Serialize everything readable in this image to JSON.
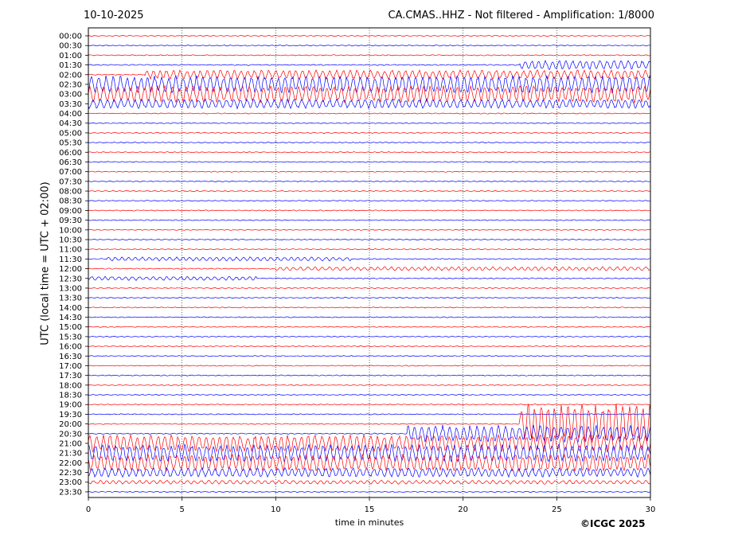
{
  "header": {
    "date": "10-10-2025",
    "title": "CA.CMAS..HHZ - Not filtered - Amplification: 1/8000"
  },
  "footer": {
    "copyright": "©ICGC 2025"
  },
  "chart_data": {
    "type": "line",
    "title": "CA.CMAS..HHZ - Not filtered - Amplification: 1/8000",
    "xlabel": "time in minutes",
    "ylabel": "UTC (local time = UTC + 02:00)",
    "xlim": [
      0,
      30
    ],
    "x_ticks": [
      0,
      5,
      10,
      15,
      20,
      25,
      30
    ],
    "grid": "vertical dotted lines at x ticks",
    "trace_colors": [
      "#ff0000",
      "#0000ff"
    ],
    "rows": [
      "00:00",
      "00:30",
      "01:00",
      "01:30",
      "02:00",
      "02:30",
      "03:00",
      "03:30",
      "04:00",
      "04:30",
      "05:00",
      "05:30",
      "06:00",
      "06:30",
      "07:00",
      "07:30",
      "08:00",
      "08:30",
      "09:00",
      "09:30",
      "10:00",
      "10:30",
      "11:00",
      "11:30",
      "12:00",
      "12:30",
      "13:00",
      "13:30",
      "14:00",
      "14:30",
      "15:00",
      "15:30",
      "16:00",
      "16:30",
      "17:00",
      "17:30",
      "18:00",
      "18:30",
      "19:00",
      "19:30",
      "20:00",
      "20:30",
      "21:00",
      "21:30",
      "22:00",
      "22:30",
      "23:00",
      "23:30"
    ],
    "activity": [
      {
        "row": "01:30",
        "from": 23,
        "to": 30,
        "amplitude": "medium"
      },
      {
        "row": "02:00",
        "from": 3,
        "to": 30,
        "amplitude": "medium"
      },
      {
        "row": "02:30",
        "from": 0,
        "to": 30,
        "amplitude": "high"
      },
      {
        "row": "03:00",
        "from": 0,
        "to": 30,
        "amplitude": "high"
      },
      {
        "row": "03:30",
        "from": 0,
        "to": 30,
        "amplitude": "medium"
      },
      {
        "row": "11:30",
        "from": 1,
        "to": 14,
        "amplitude": "low"
      },
      {
        "row": "12:00",
        "from": 10,
        "to": 30,
        "amplitude": "low"
      },
      {
        "row": "12:30",
        "from": 0,
        "to": 9,
        "amplitude": "low"
      },
      {
        "row": "20:00",
        "from": 23,
        "to": 30,
        "amplitude": "very high"
      },
      {
        "row": "20:30",
        "from": 17,
        "to": 30,
        "amplitude": "high"
      },
      {
        "row": "21:00",
        "from": 0,
        "to": 30,
        "amplitude": "high"
      },
      {
        "row": "21:30",
        "from": 0,
        "to": 30,
        "amplitude": "high"
      },
      {
        "row": "22:00",
        "from": 0,
        "to": 30,
        "amplitude": "high"
      },
      {
        "row": "22:30",
        "from": 0,
        "to": 30,
        "amplitude": "medium"
      },
      {
        "row": "23:00",
        "from": 0,
        "to": 30,
        "amplitude": "low"
      }
    ]
  }
}
